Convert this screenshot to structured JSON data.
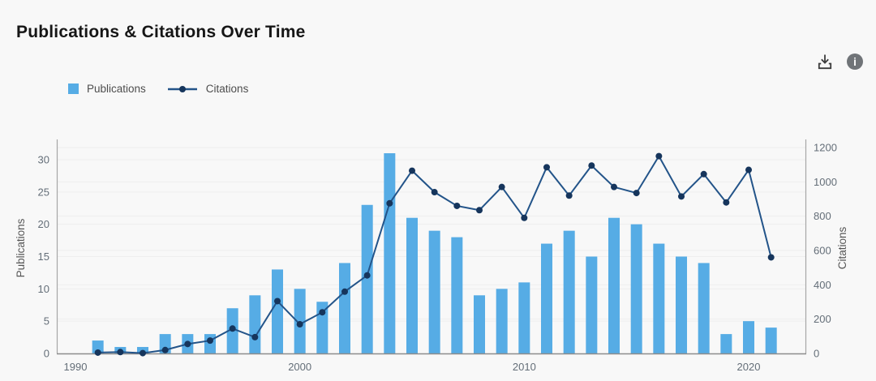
{
  "header": {
    "title": "Publications & Citations Over Time"
  },
  "toolbar": {
    "icons": [
      {
        "name": "download-icon"
      },
      {
        "name": "info-icon",
        "glyph": "i"
      }
    ]
  },
  "legend": {
    "items": [
      {
        "label": "Publications",
        "type": "bar"
      },
      {
        "label": "Citations",
        "type": "line"
      }
    ]
  },
  "colors": {
    "bar": "#56ACE5",
    "line": "#235489",
    "marker": "#16355C",
    "grid": "#eeeeee",
    "axis_line": "#a6a6a6",
    "bottom_axis_line": "#8c8c8c",
    "tick_text": "#646e78",
    "axis_title_text": "#555555",
    "icon": "#3c3c3c",
    "info_circle": "#707478"
  },
  "chart_data": {
    "type": "combo: bar + line, dual y-axes",
    "title": "Publications & Citations Over Time",
    "categories": [
      1991,
      1992,
      1993,
      1994,
      1995,
      1996,
      1997,
      1998,
      1999,
      2000,
      2001,
      2002,
      2003,
      2004,
      2005,
      2006,
      2007,
      2008,
      2009,
      2010,
      2011,
      2012,
      2013,
      2014,
      2015,
      2016,
      2017,
      2018,
      2019,
      2020,
      2021
    ],
    "series": [
      {
        "name": "Publications",
        "type": "bar",
        "axis": "left",
        "values": [
          2,
          1,
          1,
          3,
          3,
          3,
          7,
          9,
          13,
          10,
          8,
          14,
          23,
          31,
          21,
          19,
          18,
          9,
          10,
          11,
          17,
          19,
          15,
          21,
          20,
          17,
          15,
          14,
          3,
          5,
          4
        ]
      },
      {
        "name": "Citations",
        "type": "line",
        "axis": "right",
        "values": [
          5,
          8,
          2,
          20,
          55,
          75,
          145,
          95,
          305,
          170,
          240,
          360,
          455,
          875,
          1065,
          940,
          860,
          835,
          970,
          790,
          1085,
          920,
          1095,
          970,
          935,
          1150,
          915,
          1045,
          880,
          1070,
          560
        ]
      }
    ],
    "left_axis": {
      "label": "Publications",
      "ticks": [
        0,
        5,
        10,
        15,
        20,
        25,
        30
      ],
      "range": [
        0,
        32
      ]
    },
    "right_axis": {
      "label": "Citations",
      "ticks": [
        0,
        200,
        400,
        600,
        800,
        1000,
        1200
      ],
      "range": [
        0,
        1250
      ]
    },
    "x_axis": {
      "tick_labels": [
        "1990",
        "2000",
        "2010",
        "2020"
      ],
      "tick_years": [
        1990,
        2000,
        2010,
        2020
      ]
    },
    "grid": "horizontal, both axes, faint",
    "legend_position": "top-left"
  }
}
